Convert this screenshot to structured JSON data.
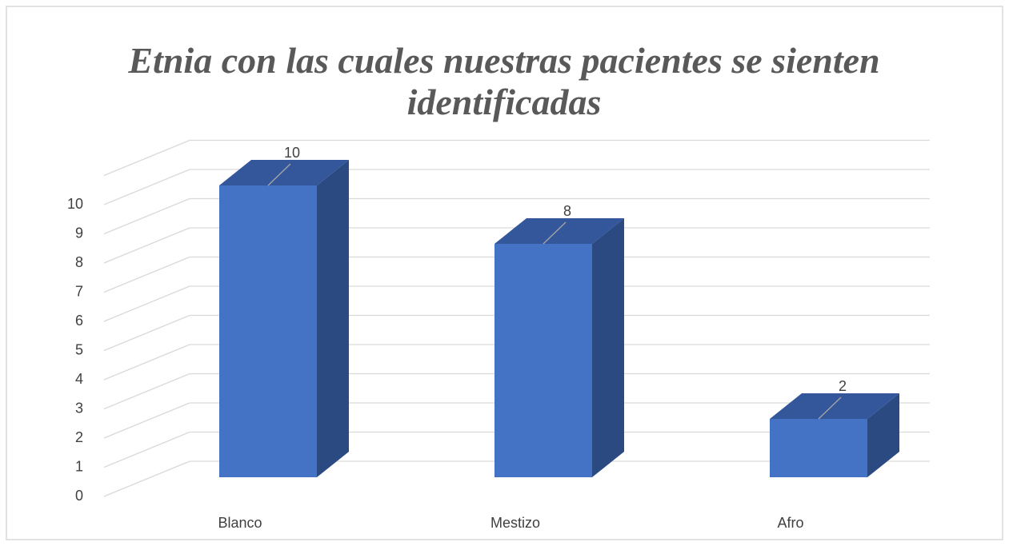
{
  "chart_data": {
    "type": "bar3d",
    "title": "Etnia con las cuales nuestras pacientes se sienten identificadas",
    "categories": [
      "Blanco",
      "Mestizo",
      "Afro"
    ],
    "values": [
      10,
      8,
      2
    ],
    "color": "#4472c4",
    "ylim": [
      0,
      11
    ],
    "yticks": [
      0,
      1,
      2,
      3,
      4,
      5,
      6,
      7,
      8,
      9,
      10
    ],
    "grid": true
  }
}
